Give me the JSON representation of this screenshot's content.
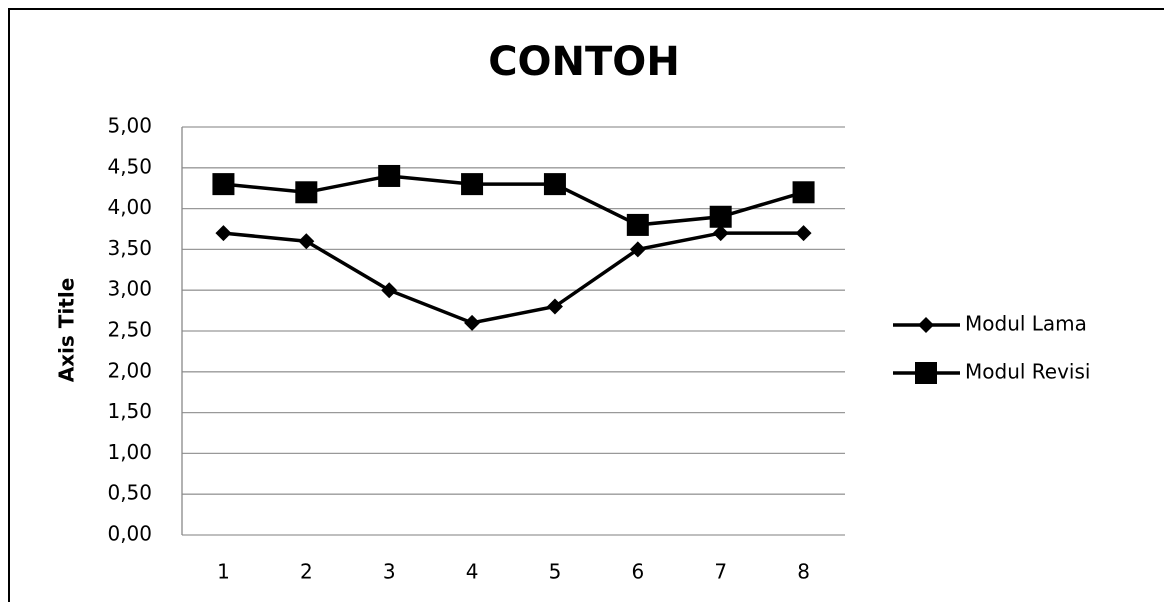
{
  "chart_data": {
    "type": "line",
    "title": "CONTOH",
    "y_label": "Axis Title",
    "categories": [
      "1",
      "2",
      "3",
      "4",
      "5",
      "6",
      "7",
      "8"
    ],
    "series": [
      {
        "name": "Modul Lama",
        "color": "#000000",
        "marker": "diamond",
        "values": [
          3.7,
          3.6,
          3.0,
          2.6,
          2.8,
          3.5,
          3.7,
          3.7
        ]
      },
      {
        "name": "Modul Revisi",
        "color": "#000000",
        "marker": "square",
        "values": [
          4.3,
          4.2,
          4.4,
          4.3,
          4.3,
          3.8,
          3.9,
          4.2
        ]
      }
    ],
    "ylim": [
      0,
      5
    ],
    "yticks": [
      {
        "value": 0,
        "label": "0,00"
      },
      {
        "value": 0.5,
        "label": "0,50"
      },
      {
        "value": 1,
        "label": "1,00"
      },
      {
        "value": 1.5,
        "label": "1,50"
      },
      {
        "value": 2,
        "label": "2,00"
      },
      {
        "value": 2.5,
        "label": "2,50"
      },
      {
        "value": 3,
        "label": "3,00"
      },
      {
        "value": 3.5,
        "label": "3,50"
      },
      {
        "value": 4,
        "label": "4,00"
      },
      {
        "value": 4.5,
        "label": "4,50"
      },
      {
        "value": 5,
        "label": "5,00"
      }
    ],
    "grid": true,
    "legend": "right"
  }
}
